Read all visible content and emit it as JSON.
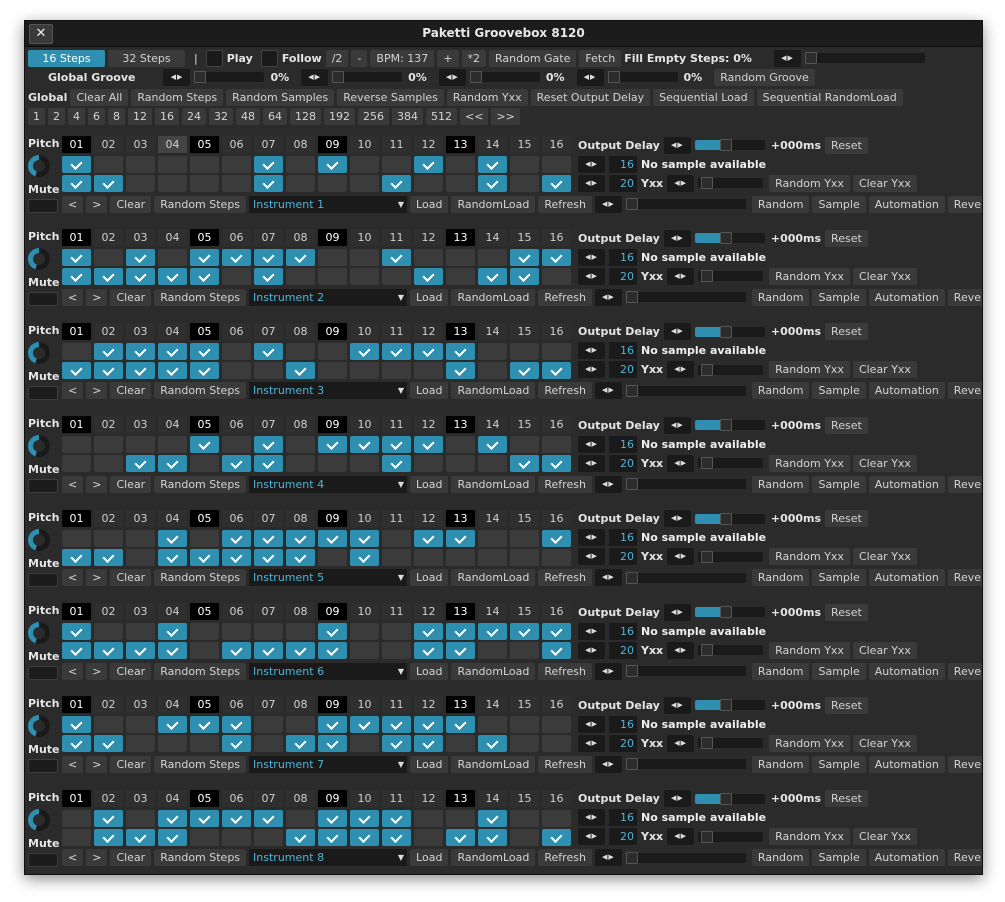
{
  "window": {
    "title": "Paketti Groovebox 8120",
    "close_glyph": "✕"
  },
  "toolbar1": {
    "steps16": "16 Steps",
    "steps32": "32 Steps",
    "sep": "|",
    "play": "Play",
    "follow": "Follow",
    "div2": "/2",
    "minus": "-",
    "bpm": "BPM: 137",
    "plus": "+",
    "mul2": "*2",
    "random_gate": "Random Gate",
    "fetch": "Fetch",
    "fill_empty": "Fill Empty Steps: 0%",
    "fill_empty_level": 0
  },
  "groove": {
    "label": "Global Groove",
    "sliders": [
      {
        "value": "0%",
        "level": 0
      },
      {
        "value": "0%",
        "level": 0
      },
      {
        "value": "0%",
        "level": 0
      },
      {
        "value": "0%",
        "level": 0
      }
    ],
    "random_groove": "Random Groove"
  },
  "global_row": {
    "label": "Global",
    "buttons": [
      "Clear All",
      "Random Steps",
      "Random Samples",
      "Reverse Samples",
      "Random Yxx",
      "Reset Output Delay",
      "Sequential Load",
      "Sequential RandomLoad"
    ]
  },
  "step_lengths": [
    "1",
    "2",
    "4",
    "6",
    "8",
    "12",
    "16",
    "24",
    "32",
    "48",
    "64",
    "128",
    "192",
    "256",
    "384",
    "512",
    "<<",
    ">>"
  ],
  "track_labels": {
    "pitch": "Pitch",
    "mute": "Mute",
    "output_delay": "Output Delay",
    "delay_value": "+000ms",
    "reset": "Reset",
    "no_sample": "No sample available",
    "yxx": "Yxx",
    "random_yxx": "Random Yxx",
    "clear_yxx": "Clear Yxx",
    "prev": "<",
    "next": ">",
    "clear": "Clear",
    "random_steps": "Random Steps",
    "load": "Load",
    "random_load": "RandomLoad",
    "refresh": "Refresh",
    "random": "Random",
    "sample": "Sample",
    "automation": "Automation",
    "reverse": "Reverse",
    "dropdown_glyph": "▼"
  },
  "tracks": [
    {
      "instrument": "Instrument 1",
      "value_a": "16",
      "value_b": "20",
      "delay_level": 0.45,
      "yxx_level": 0.05,
      "mid_highlight": [
        3
      ],
      "row1": [
        1,
        0,
        0,
        0,
        0,
        0,
        1,
        0,
        1,
        0,
        0,
        1,
        0,
        1,
        0,
        0
      ],
      "row2": [
        1,
        1,
        0,
        0,
        0,
        0,
        1,
        0,
        0,
        0,
        1,
        0,
        0,
        1,
        0,
        1
      ]
    },
    {
      "instrument": "Instrument 2",
      "value_a": "16",
      "value_b": "20",
      "delay_level": 0.45,
      "yxx_level": 0.05,
      "mid_highlight": [],
      "row1": [
        1,
        0,
        1,
        0,
        1,
        1,
        1,
        1,
        0,
        0,
        1,
        0,
        0,
        0,
        1,
        1
      ],
      "row2": [
        1,
        1,
        1,
        1,
        1,
        0,
        1,
        0,
        0,
        0,
        0,
        1,
        0,
        1,
        1,
        0
      ]
    },
    {
      "instrument": "Instrument 3",
      "value_a": "16",
      "value_b": "20",
      "delay_level": 0.45,
      "yxx_level": 0.05,
      "mid_highlight": [],
      "row1": [
        0,
        1,
        1,
        1,
        1,
        0,
        1,
        0,
        0,
        1,
        1,
        1,
        1,
        0,
        0,
        0
      ],
      "row2": [
        1,
        1,
        1,
        1,
        1,
        0,
        0,
        1,
        0,
        0,
        0,
        0,
        1,
        0,
        1,
        1
      ]
    },
    {
      "instrument": "Instrument 4",
      "value_a": "16",
      "value_b": "20",
      "delay_level": 0.45,
      "yxx_level": 0.05,
      "mid_highlight": [],
      "row1": [
        0,
        0,
        0,
        0,
        1,
        0,
        1,
        0,
        1,
        1,
        1,
        1,
        0,
        1,
        0,
        0
      ],
      "row2": [
        0,
        0,
        1,
        1,
        0,
        1,
        1,
        0,
        0,
        0,
        1,
        0,
        0,
        0,
        1,
        1
      ]
    },
    {
      "instrument": "Instrument 5",
      "value_a": "16",
      "value_b": "20",
      "delay_level": 0.45,
      "yxx_level": 0.05,
      "mid_highlight": [],
      "row1": [
        0,
        0,
        0,
        1,
        0,
        1,
        1,
        1,
        1,
        1,
        0,
        1,
        1,
        0,
        0,
        1
      ],
      "row2": [
        1,
        1,
        0,
        1,
        1,
        1,
        1,
        1,
        0,
        1,
        0,
        0,
        0,
        0,
        0,
        0
      ]
    },
    {
      "instrument": "Instrument 6",
      "value_a": "16",
      "value_b": "20",
      "delay_level": 0.45,
      "yxx_level": 0.05,
      "mid_highlight": [],
      "row1": [
        1,
        0,
        0,
        1,
        0,
        0,
        0,
        0,
        1,
        0,
        0,
        1,
        1,
        1,
        1,
        1
      ],
      "row2": [
        1,
        1,
        1,
        1,
        0,
        1,
        1,
        1,
        1,
        0,
        0,
        1,
        1,
        0,
        0,
        1
      ]
    },
    {
      "instrument": "Instrument 7",
      "value_a": "16",
      "value_b": "20",
      "delay_level": 0.45,
      "yxx_level": 0.05,
      "mid_highlight": [],
      "row1": [
        1,
        0,
        0,
        1,
        1,
        1,
        0,
        0,
        1,
        1,
        1,
        1,
        1,
        0,
        0,
        0
      ],
      "row2": [
        1,
        1,
        0,
        0,
        0,
        1,
        0,
        1,
        1,
        0,
        1,
        1,
        0,
        1,
        0,
        0
      ]
    },
    {
      "instrument": "Instrument 8",
      "value_a": "16",
      "value_b": "20",
      "delay_level": 0.45,
      "yxx_level": 0.05,
      "mid_highlight": [],
      "row1": [
        0,
        1,
        0,
        1,
        1,
        1,
        1,
        0,
        1,
        1,
        1,
        0,
        0,
        1,
        0,
        0
      ],
      "row2": [
        0,
        1,
        1,
        1,
        0,
        0,
        0,
        1,
        1,
        1,
        1,
        0,
        1,
        1,
        0,
        1
      ]
    }
  ],
  "step_numbers": [
    "01",
    "02",
    "03",
    "04",
    "05",
    "06",
    "07",
    "08",
    "09",
    "10",
    "11",
    "12",
    "13",
    "14",
    "15",
    "16"
  ],
  "highlight_steps": [
    1,
    5,
    9,
    13
  ],
  "colors": {
    "accent": "#2f8fb0",
    "background": "#2b2b2b",
    "cell_off": "#3b3b3b",
    "value_text": "#4fb4d8"
  }
}
